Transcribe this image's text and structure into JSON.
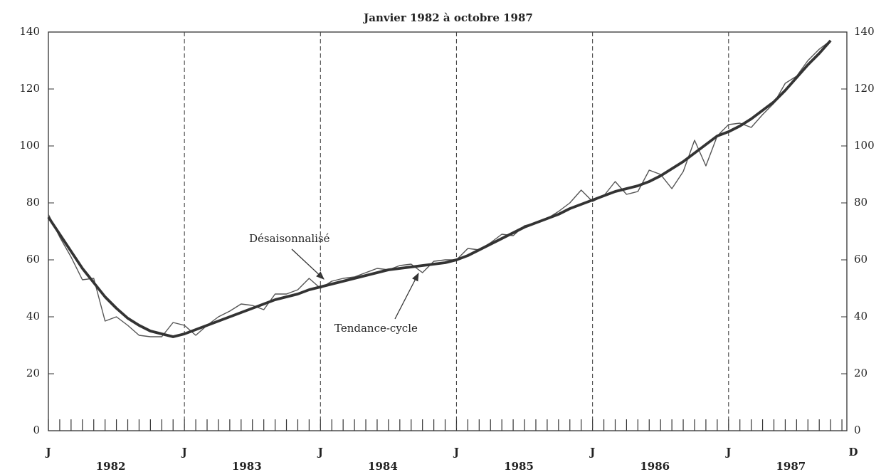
{
  "chart_data": {
    "type": "line",
    "title": "Janvier 1982 à octobre 1987",
    "x": [
      "1982-01",
      "1982-02",
      "1982-03",
      "1982-04",
      "1982-05",
      "1982-06",
      "1982-07",
      "1982-08",
      "1982-09",
      "1982-10",
      "1982-11",
      "1982-12",
      "1983-01",
      "1983-02",
      "1983-03",
      "1983-04",
      "1983-05",
      "1983-06",
      "1983-07",
      "1983-08",
      "1983-09",
      "1983-10",
      "1983-11",
      "1983-12",
      "1984-01",
      "1984-02",
      "1984-03",
      "1984-04",
      "1984-05",
      "1984-06",
      "1984-07",
      "1984-08",
      "1984-09",
      "1984-10",
      "1984-11",
      "1984-12",
      "1985-01",
      "1985-02",
      "1985-03",
      "1985-04",
      "1985-05",
      "1985-06",
      "1985-07",
      "1985-08",
      "1985-09",
      "1985-10",
      "1985-11",
      "1985-12",
      "1986-01",
      "1986-02",
      "1986-03",
      "1986-04",
      "1986-05",
      "1986-06",
      "1986-07",
      "1986-08",
      "1986-09",
      "1986-10",
      "1986-11",
      "1986-12",
      "1987-01",
      "1987-02",
      "1987-03",
      "1987-04",
      "1987-05",
      "1987-06",
      "1987-07",
      "1987-08",
      "1987-09",
      "1987-10"
    ],
    "series": [
      {
        "name": "Désaisonnalisé",
        "color": "#555555",
        "values": [
          76,
          68,
          61,
          53,
          53.5,
          38.5,
          40,
          37,
          33.5,
          33,
          33,
          38,
          37,
          33.5,
          37,
          40,
          42,
          44.5,
          44,
          42.5,
          48,
          48,
          49.5,
          53.5,
          50,
          52.5,
          53.5,
          54,
          55.5,
          57,
          56.5,
          58,
          58.5,
          55.5,
          59.5,
          60,
          60,
          64,
          63.5,
          66,
          69,
          68.5,
          72,
          73,
          74.5,
          77,
          80,
          84.5,
          80.5,
          82.5,
          87.5,
          83,
          84,
          91.5,
          90,
          85,
          91,
          102,
          93,
          103.5,
          107.5,
          108,
          106.5,
          111,
          115,
          122,
          124.5,
          130,
          134,
          137
        ]
      },
      {
        "name": "Tendance-cycle",
        "color": "#333333",
        "values": [
          75,
          69,
          63,
          57,
          52,
          47,
          43,
          39.5,
          37,
          35,
          34,
          33,
          34,
          35.5,
          37,
          38.5,
          40,
          41.5,
          43,
          44.5,
          46,
          47,
          48,
          49.5,
          50.5,
          51.5,
          52.5,
          53.5,
          54.5,
          55.5,
          56.5,
          57,
          57.5,
          58,
          58.5,
          59,
          60,
          61.5,
          63.5,
          65.5,
          67.5,
          69.5,
          71.5,
          73,
          74.5,
          76,
          78,
          79.5,
          81,
          82.5,
          84,
          85,
          86,
          87.5,
          89.5,
          92,
          94.5,
          97.5,
          100.5,
          103.5,
          105,
          107,
          109.5,
          112.5,
          115.5,
          119.5,
          124,
          128.5,
          132.5,
          137
        ]
      }
    ],
    "xlim": [
      "1982-01",
      "1987-12"
    ],
    "xticks": [
      {
        "value": "1982-01",
        "label": "J"
      },
      {
        "value": "1983-01",
        "label": "J"
      },
      {
        "value": "1984-01",
        "label": "J"
      },
      {
        "value": "1985-01",
        "label": "J"
      },
      {
        "value": "1986-01",
        "label": "J"
      },
      {
        "value": "1987-01",
        "label": "J"
      },
      {
        "value": "1987-12",
        "label": "D"
      }
    ],
    "year_labels": [
      "1982",
      "1983",
      "1984",
      "1985",
      "1986",
      "1987"
    ],
    "ylim": [
      0,
      140
    ],
    "yticks": [
      0,
      20,
      40,
      60,
      80,
      100,
      120,
      140
    ],
    "y2lim": [
      0,
      140
    ],
    "y2ticks": [
      0,
      20,
      40,
      60,
      80,
      100,
      120,
      140
    ],
    "grid": "x-dashed"
  }
}
